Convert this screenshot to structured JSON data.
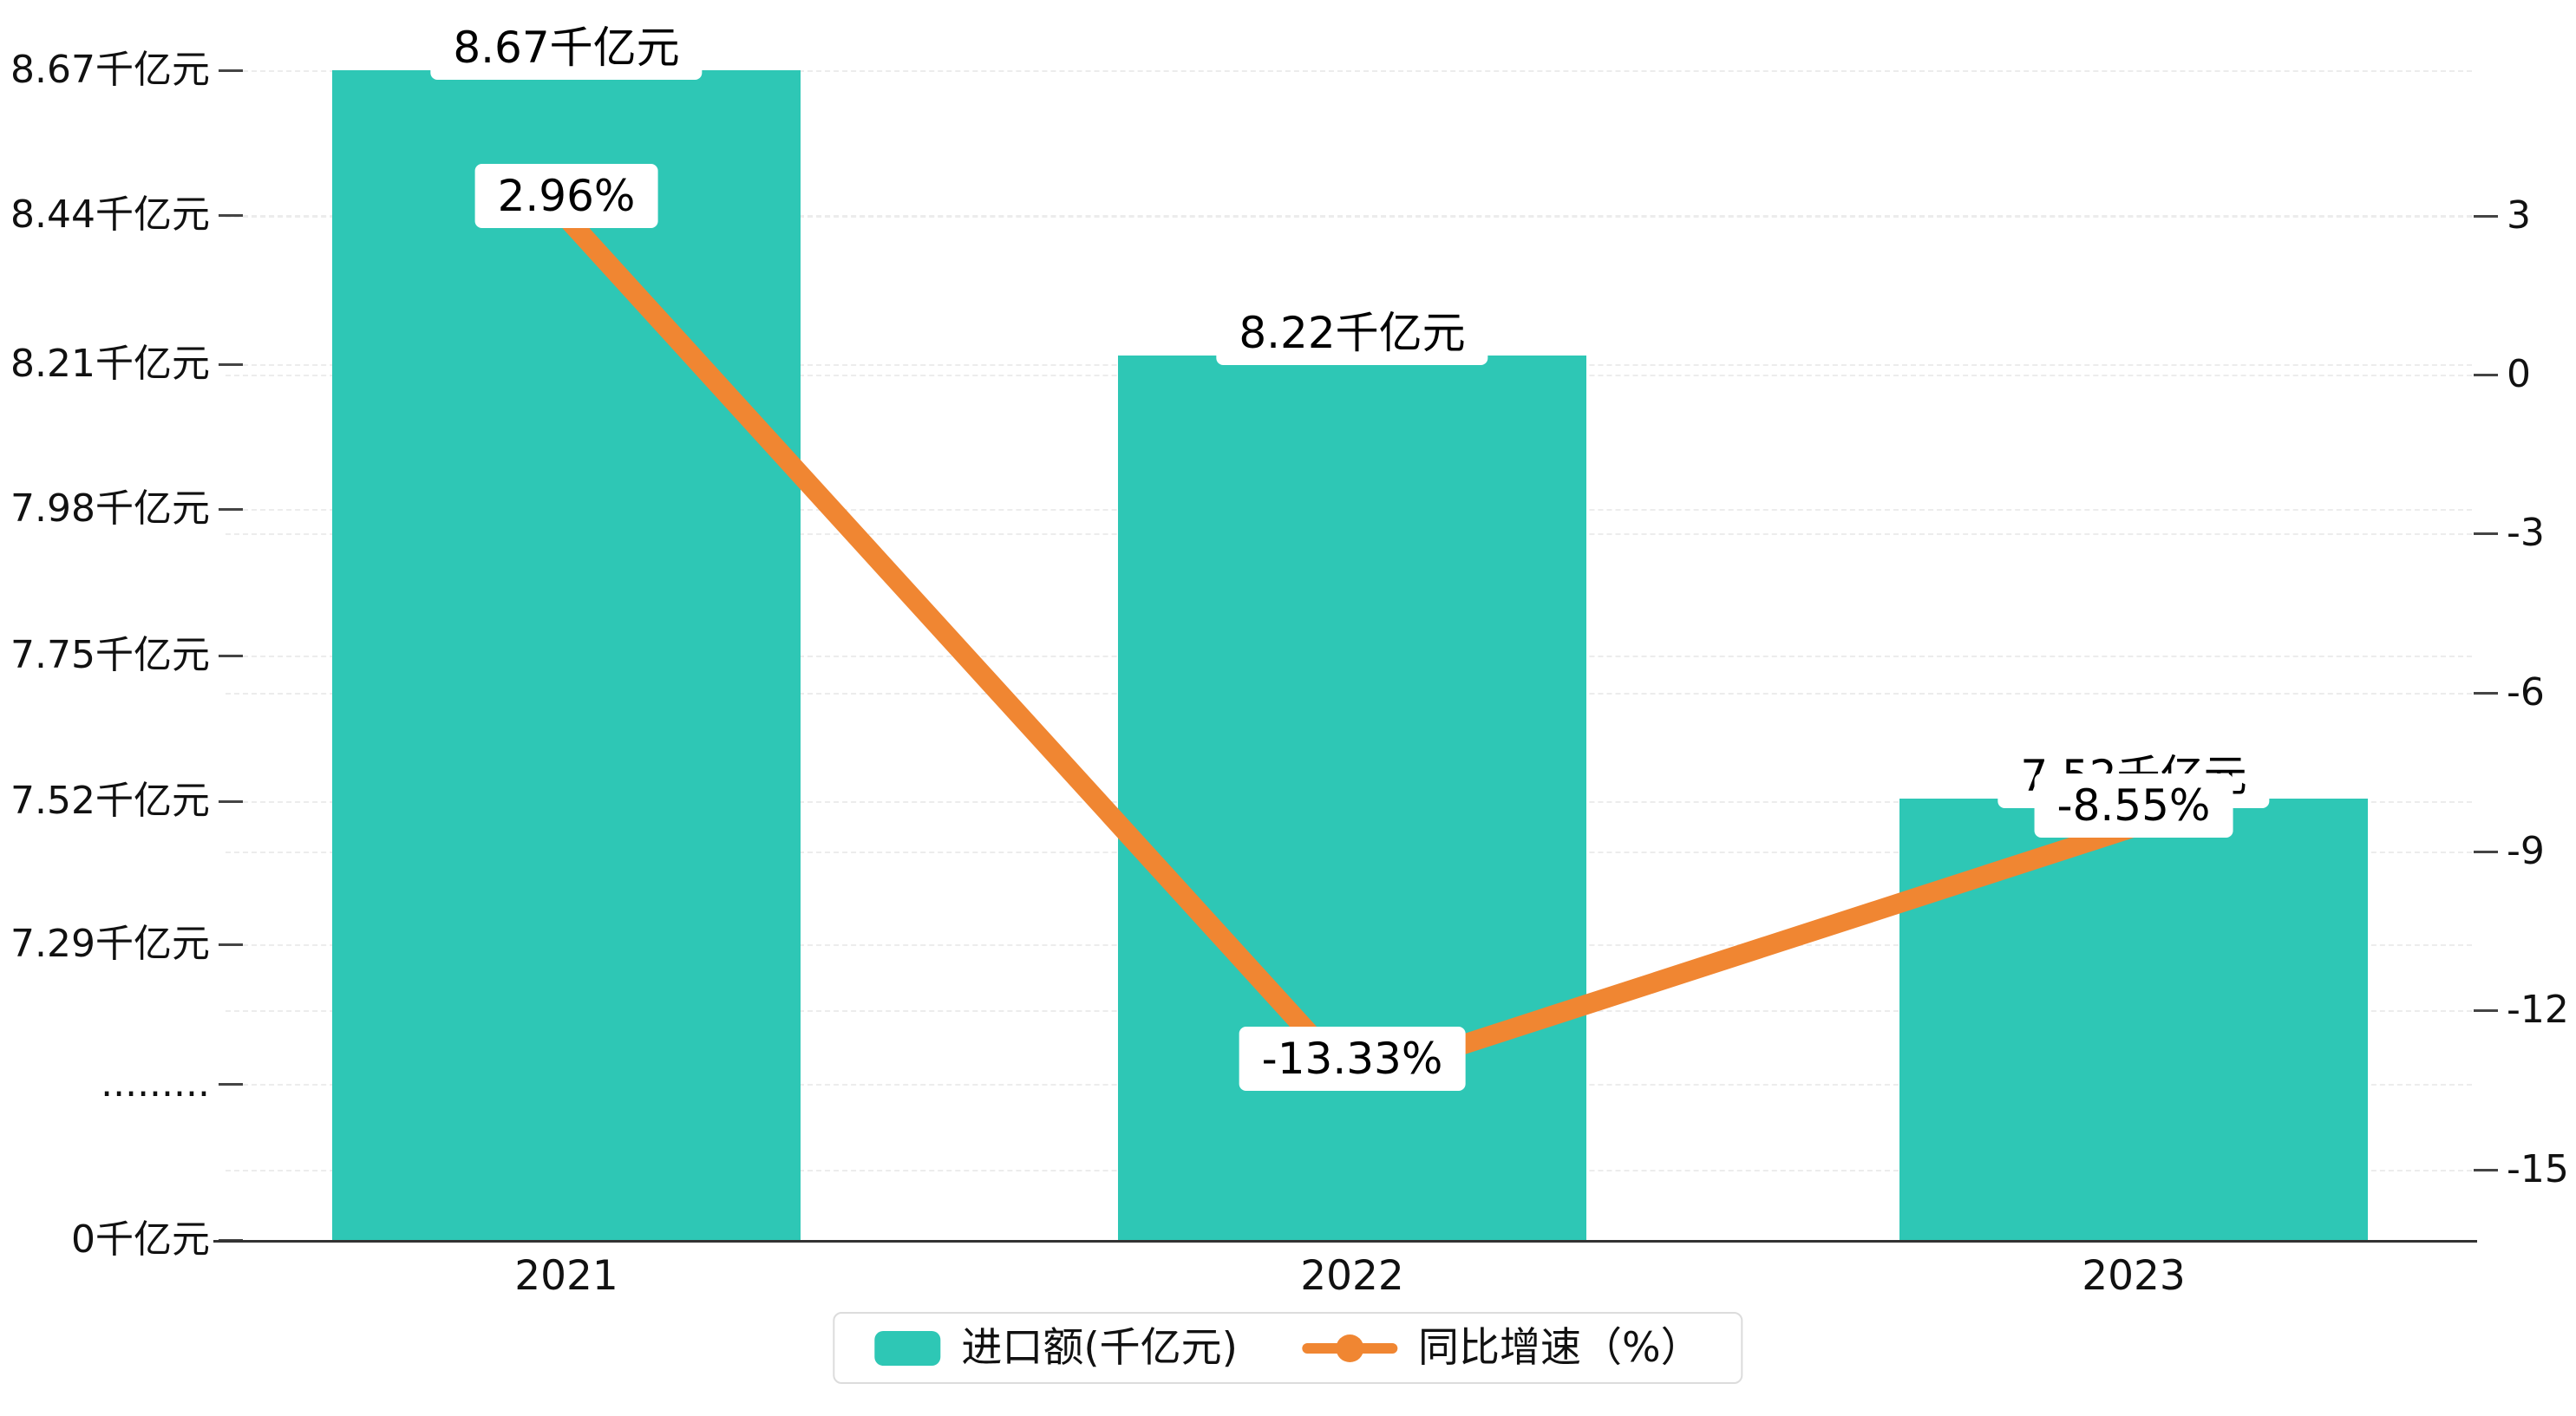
{
  "chart_data": {
    "type": "bar+line",
    "categories": [
      "2021",
      "2022",
      "2023"
    ],
    "series": [
      {
        "name": "进口额(千亿元)",
        "type": "bar",
        "values": [
          8.67,
          8.22,
          7.52
        ],
        "labels": [
          "8.67千亿元",
          "8.22千亿元",
          "7.52千亿元"
        ],
        "unit": "千亿元",
        "color": "#2EC7B5"
      },
      {
        "name": "同比增速（%）",
        "type": "line",
        "values": [
          2.96,
          -13.33,
          -8.55
        ],
        "labels": [
          "2.96%",
          "-13.33%",
          "-8.55%"
        ],
        "unit": "%",
        "color": "#F08632"
      }
    ],
    "left_axis": {
      "tick_labels": [
        "8.67千亿元",
        "8.44千亿元",
        "8.21千亿元",
        "7.98千亿元",
        "7.75千亿元",
        "7.52千亿元",
        "7.29千亿元",
        ".........",
        "0千亿元"
      ],
      "broken_axis": true
    },
    "right_axis": {
      "tick_labels": [
        "3",
        "0",
        "-3",
        "-6",
        "-9",
        "-12",
        "-15"
      ],
      "range": [
        -15,
        3
      ]
    },
    "legend": [
      {
        "label": "进口额(千亿元)"
      },
      {
        "label": "同比增速（%）"
      }
    ],
    "grid": true,
    "legend_position": "bottom"
  },
  "colors": {
    "bar": "#2EC7B5",
    "line": "#F08632",
    "grid": "#ececec",
    "axis": "#333333",
    "text": "#111111",
    "label_bg": "#ffffff",
    "legend_border": "#dcdcdc"
  }
}
